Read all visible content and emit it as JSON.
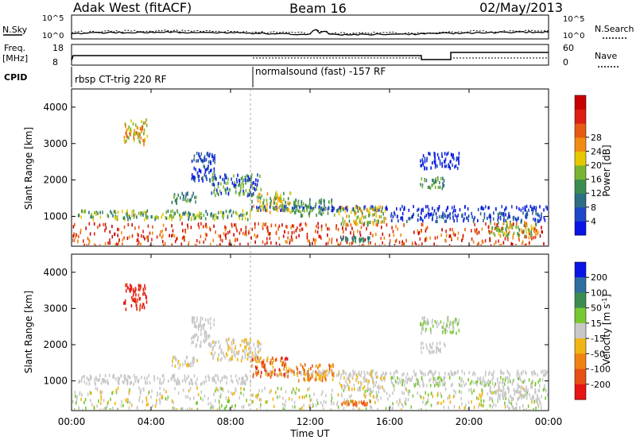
{
  "header": {
    "radar": "Adak West (fitACF)",
    "beam": "Beam 16",
    "date": "02/May/2013"
  },
  "top_panels": {
    "nsky_label": "N.Sky",
    "nsearch_label": "N.Search",
    "noise_left_ticks": [
      "10^5",
      "10^0"
    ],
    "noise_right_ticks": [
      "10^5",
      "10^0"
    ],
    "freq_label_1": "Freq.",
    "freq_label_2": "[MHz]",
    "freq_ticks": [
      "18",
      "8"
    ],
    "nave_label": "Nave",
    "nave_ticks": [
      "60",
      "0"
    ],
    "cpid_label": "CPID",
    "cpid_segments": [
      {
        "label": "rbsp CT-trig 220 RF",
        "start_h": 0.0
      },
      {
        "label": "normalsound (fast) -157 RF",
        "start_h": 9.0
      }
    ]
  },
  "chart_data": [
    {
      "type": "heatmap",
      "title": "",
      "xlabel": "Time UT",
      "ylabel": "Slant Range [km]",
      "x_ticks": [
        "00:00",
        "04:00",
        "08:00",
        "12:00",
        "16:00",
        "20:00",
        "00:00"
      ],
      "xlim_hours": [
        0,
        24
      ],
      "y_ticks": [
        1000,
        2000,
        3000,
        4000
      ],
      "ylim": [
        180,
        4500
      ],
      "colorbar": {
        "label": "Power [dB]",
        "ticks": [
          "4",
          "8",
          "12",
          "16",
          "20",
          "24",
          "28"
        ],
        "colors": [
          "#0a14e6",
          "#1e46c8",
          "#2e6e82",
          "#3c8c50",
          "#78b432",
          "#e6c800",
          "#f08c14",
          "#e65a14",
          "#dc1e14",
          "#c80000"
        ]
      },
      "regions": [
        {
          "t0": 0.0,
          "t1": 24.0,
          "r0": 200,
          "r1": 850,
          "levels": [
            8,
            9,
            6,
            7
          ]
        },
        {
          "t0": 0.3,
          "t1": 9.0,
          "r0": 950,
          "r1": 1200,
          "levels": [
            3,
            4,
            2,
            5
          ]
        },
        {
          "t0": 9.0,
          "t1": 24.0,
          "r0": 1200,
          "r1": 1320,
          "levels": [
            0,
            1,
            0
          ]
        },
        {
          "t0": 2.6,
          "t1": 3.8,
          "r0": 3000,
          "r1": 3700,
          "levels": [
            6,
            7,
            5,
            4
          ]
        },
        {
          "t0": 5.0,
          "t1": 6.3,
          "r0": 1400,
          "r1": 1700,
          "levels": [
            3,
            4,
            2
          ]
        },
        {
          "t0": 6.0,
          "t1": 7.2,
          "r0": 2000,
          "r1": 2800,
          "levels": [
            0,
            1,
            2
          ]
        },
        {
          "t0": 7.0,
          "t1": 9.5,
          "r0": 1600,
          "r1": 2200,
          "levels": [
            0,
            1,
            3,
            4
          ]
        },
        {
          "t0": 9.0,
          "t1": 11.0,
          "r0": 1150,
          "r1": 1700,
          "levels": [
            3,
            4,
            5,
            6
          ]
        },
        {
          "t0": 11.0,
          "t1": 13.2,
          "r0": 1050,
          "r1": 1500,
          "levels": [
            2,
            3,
            4
          ]
        },
        {
          "t0": 13.3,
          "t1": 15.8,
          "r0": 800,
          "r1": 1300,
          "levels": [
            3,
            4,
            5,
            6
          ]
        },
        {
          "t0": 17.5,
          "t1": 18.8,
          "r0": 1800,
          "r1": 2100,
          "levels": [
            2,
            3,
            4
          ]
        },
        {
          "t0": 17.5,
          "t1": 19.5,
          "r0": 2350,
          "r1": 2800,
          "levels": [
            0,
            1
          ]
        },
        {
          "t0": 21.0,
          "t1": 23.5,
          "r0": 500,
          "r1": 900,
          "levels": [
            3,
            4,
            5,
            6
          ]
        },
        {
          "t0": 16.0,
          "t1": 23.8,
          "r0": 900,
          "r1": 1150,
          "levels": [
            0,
            1,
            2
          ]
        },
        {
          "t0": 13.5,
          "t1": 15.0,
          "r0": 350,
          "r1": 480,
          "levels": [
            2,
            3
          ]
        }
      ]
    },
    {
      "type": "heatmap",
      "title": "",
      "xlabel": "Time UT",
      "ylabel": "Slant Range [km]",
      "x_ticks": [
        "00:00",
        "04:00",
        "08:00",
        "12:00",
        "16:00",
        "20:00",
        "00:00"
      ],
      "xlim_hours": [
        0,
        24
      ],
      "y_ticks": [
        1000,
        2000,
        3000,
        4000
      ],
      "ylim": [
        180,
        4500
      ],
      "colorbar": {
        "label": "Velocity [m s^-1]",
        "ticks": [
          "200",
          "100",
          "50",
          "15",
          "-15",
          "-50",
          "-100",
          "-200"
        ],
        "colors": [
          "#0a14e6",
          "#2e6e9e",
          "#3c8c50",
          "#78c832",
          "#c8c8c8",
          "#f0b414",
          "#f08214",
          "#e65014",
          "#e61414"
        ]
      },
      "regions": [
        {
          "t0": 0.0,
          "t1": 24.0,
          "r0": 200,
          "r1": 850,
          "levels": [
            4,
            3,
            4,
            5
          ]
        },
        {
          "t0": 0.3,
          "t1": 9.0,
          "r0": 950,
          "r1": 1200,
          "levels": [
            4,
            4,
            4
          ]
        },
        {
          "t0": 9.0,
          "t1": 24.0,
          "r0": 1200,
          "r1": 1320,
          "levels": [
            4
          ]
        },
        {
          "t0": 2.6,
          "t1": 3.8,
          "r0": 3000,
          "r1": 3700,
          "levels": [
            8,
            7,
            8
          ]
        },
        {
          "t0": 5.0,
          "t1": 6.3,
          "r0": 1400,
          "r1": 1700,
          "levels": [
            4,
            4,
            5
          ]
        },
        {
          "t0": 6.0,
          "t1": 7.2,
          "r0": 2000,
          "r1": 2800,
          "levels": [
            4,
            4
          ]
        },
        {
          "t0": 7.0,
          "t1": 9.5,
          "r0": 1600,
          "r1": 2200,
          "levels": [
            4,
            5,
            4
          ]
        },
        {
          "t0": 9.0,
          "t1": 11.0,
          "r0": 1150,
          "r1": 1700,
          "levels": [
            6,
            7,
            8,
            5
          ]
        },
        {
          "t0": 11.0,
          "t1": 13.2,
          "r0": 1050,
          "r1": 1500,
          "levels": [
            6,
            7,
            5
          ]
        },
        {
          "t0": 13.3,
          "t1": 15.8,
          "r0": 800,
          "r1": 1300,
          "levels": [
            4,
            4,
            5
          ]
        },
        {
          "t0": 17.5,
          "t1": 18.8,
          "r0": 1800,
          "r1": 2100,
          "levels": [
            4,
            4
          ]
        },
        {
          "t0": 17.5,
          "t1": 19.5,
          "r0": 2350,
          "r1": 2800,
          "levels": [
            4,
            3
          ]
        },
        {
          "t0": 21.0,
          "t1": 23.5,
          "r0": 500,
          "r1": 900,
          "levels": [
            4,
            4,
            4
          ]
        },
        {
          "t0": 16.0,
          "t1": 23.8,
          "r0": 900,
          "r1": 1150,
          "levels": [
            4,
            4,
            3
          ]
        },
        {
          "t0": 13.5,
          "t1": 15.0,
          "r0": 350,
          "r1": 480,
          "levels": [
            6,
            7
          ]
        }
      ]
    }
  ]
}
